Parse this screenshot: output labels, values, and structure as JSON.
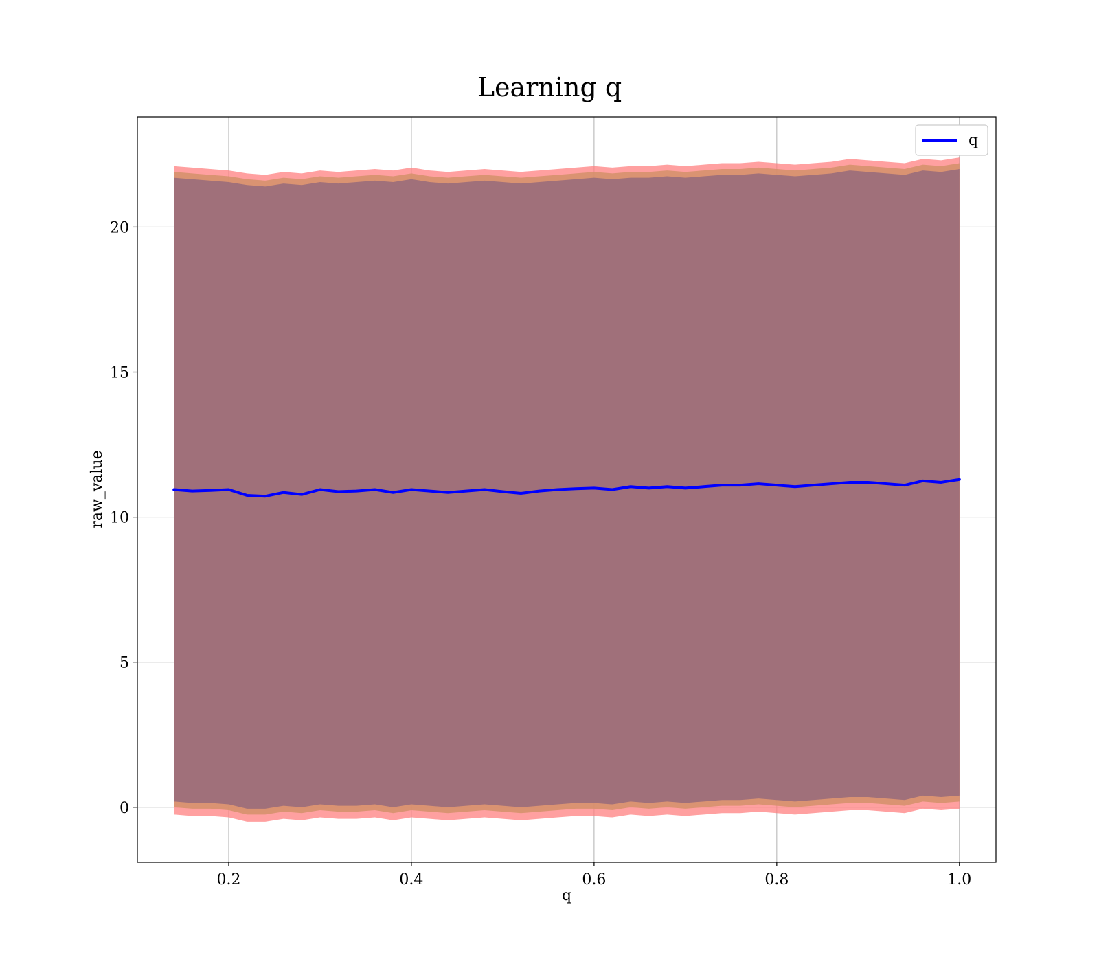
{
  "chart_data": {
    "type": "line",
    "title": "Learning q",
    "xlabel": "q",
    "ylabel": "raw_value",
    "xlim": [
      0.1,
      1.04
    ],
    "ylim": [
      -1.9,
      23.8
    ],
    "x_ticks": [
      0.2,
      0.4,
      0.6,
      0.8,
      1.0
    ],
    "x_tick_labels": [
      "0.2",
      "0.4",
      "0.6",
      "0.8",
      "1.0"
    ],
    "y_ticks": [
      0,
      5,
      10,
      15,
      20
    ],
    "y_tick_labels": [
      "0",
      "5",
      "10",
      "15",
      "20"
    ],
    "grid": true,
    "legend": {
      "placement": "top-right",
      "entries": [
        {
          "label": "q",
          "color": "#0000ff"
        }
      ]
    },
    "colors": {
      "line": "#0000ff",
      "band_outer": "#ff8080",
      "band_middle": "#d4906a",
      "band_inner": "#a0707a",
      "grid": "#b0b0b0"
    },
    "series": [
      {
        "name": "q",
        "x": [
          0.14,
          0.16,
          0.18,
          0.2,
          0.22,
          0.24,
          0.26,
          0.28,
          0.3,
          0.32,
          0.34,
          0.36,
          0.38,
          0.4,
          0.42,
          0.44,
          0.46,
          0.48,
          0.5,
          0.52,
          0.54,
          0.56,
          0.58,
          0.6,
          0.62,
          0.64,
          0.66,
          0.68,
          0.7,
          0.72,
          0.74,
          0.76,
          0.78,
          0.8,
          0.82,
          0.84,
          0.86,
          0.88,
          0.9,
          0.92,
          0.94,
          0.96,
          0.98,
          1.0
        ],
        "y": [
          10.95,
          10.9,
          10.92,
          10.95,
          10.75,
          10.72,
          10.85,
          10.78,
          10.95,
          10.88,
          10.9,
          10.95,
          10.85,
          10.95,
          10.9,
          10.85,
          10.9,
          10.95,
          10.88,
          10.82,
          10.9,
          10.95,
          10.98,
          11.0,
          10.95,
          11.05,
          11.0,
          11.05,
          11.0,
          11.05,
          11.1,
          11.1,
          11.15,
          11.1,
          11.05,
          11.1,
          11.15,
          11.2,
          11.2,
          11.15,
          11.1,
          11.25,
          11.2,
          11.3
        ]
      }
    ],
    "bands": [
      {
        "role": "outer",
        "upper": [
          22.1,
          22.05,
          22.0,
          21.95,
          21.85,
          21.8,
          21.9,
          21.85,
          21.95,
          21.9,
          21.95,
          22.0,
          21.95,
          22.05,
          21.95,
          21.9,
          21.95,
          22.0,
          21.95,
          21.9,
          21.95,
          22.0,
          22.05,
          22.1,
          22.05,
          22.1,
          22.1,
          22.15,
          22.1,
          22.15,
          22.2,
          22.2,
          22.25,
          22.2,
          22.15,
          22.2,
          22.25,
          22.35,
          22.3,
          22.25,
          22.2,
          22.35,
          22.3,
          22.4
        ],
        "lower": [
          -0.25,
          -0.3,
          -0.3,
          -0.35,
          -0.5,
          -0.5,
          -0.4,
          -0.45,
          -0.35,
          -0.4,
          -0.4,
          -0.35,
          -0.45,
          -0.35,
          -0.4,
          -0.45,
          -0.4,
          -0.35,
          -0.4,
          -0.45,
          -0.4,
          -0.35,
          -0.3,
          -0.3,
          -0.35,
          -0.25,
          -0.3,
          -0.25,
          -0.3,
          -0.25,
          -0.2,
          -0.2,
          -0.15,
          -0.2,
          -0.25,
          -0.2,
          -0.15,
          -0.1,
          -0.1,
          -0.15,
          -0.2,
          -0.05,
          -0.1,
          -0.05
        ]
      },
      {
        "role": "middle",
        "upper": [
          21.9,
          21.85,
          21.8,
          21.75,
          21.65,
          21.6,
          21.7,
          21.65,
          21.75,
          21.7,
          21.75,
          21.8,
          21.75,
          21.85,
          21.75,
          21.7,
          21.75,
          21.8,
          21.75,
          21.7,
          21.75,
          21.8,
          21.85,
          21.9,
          21.85,
          21.9,
          21.9,
          21.95,
          21.9,
          21.95,
          22.0,
          22.0,
          22.05,
          22.0,
          21.95,
          22.0,
          22.05,
          22.15,
          22.1,
          22.05,
          22.0,
          22.15,
          22.1,
          22.2
        ],
        "lower": [
          0.0,
          -0.05,
          -0.05,
          -0.1,
          -0.25,
          -0.25,
          -0.15,
          -0.2,
          -0.1,
          -0.15,
          -0.15,
          -0.1,
          -0.2,
          -0.1,
          -0.15,
          -0.2,
          -0.15,
          -0.1,
          -0.15,
          -0.2,
          -0.15,
          -0.1,
          -0.05,
          -0.05,
          -0.1,
          0.0,
          -0.05,
          0.0,
          -0.05,
          0.0,
          0.05,
          0.05,
          0.1,
          0.05,
          0.0,
          0.05,
          0.1,
          0.15,
          0.15,
          0.1,
          0.05,
          0.2,
          0.15,
          0.2
        ]
      },
      {
        "role": "inner",
        "upper": [
          21.7,
          21.65,
          21.6,
          21.55,
          21.45,
          21.4,
          21.5,
          21.45,
          21.55,
          21.5,
          21.55,
          21.6,
          21.55,
          21.65,
          21.55,
          21.5,
          21.55,
          21.6,
          21.55,
          21.5,
          21.55,
          21.6,
          21.65,
          21.7,
          21.65,
          21.7,
          21.7,
          21.75,
          21.7,
          21.75,
          21.8,
          21.8,
          21.85,
          21.8,
          21.75,
          21.8,
          21.85,
          21.95,
          21.9,
          21.85,
          21.8,
          21.95,
          21.9,
          22.0
        ],
        "lower": [
          0.2,
          0.15,
          0.15,
          0.1,
          -0.05,
          -0.05,
          0.05,
          0.0,
          0.1,
          0.05,
          0.05,
          0.1,
          0.0,
          0.1,
          0.05,
          0.0,
          0.05,
          0.1,
          0.05,
          0.0,
          0.05,
          0.1,
          0.15,
          0.15,
          0.1,
          0.2,
          0.15,
          0.2,
          0.15,
          0.2,
          0.25,
          0.25,
          0.3,
          0.25,
          0.2,
          0.25,
          0.3,
          0.35,
          0.35,
          0.3,
          0.25,
          0.4,
          0.35,
          0.4
        ]
      }
    ]
  }
}
